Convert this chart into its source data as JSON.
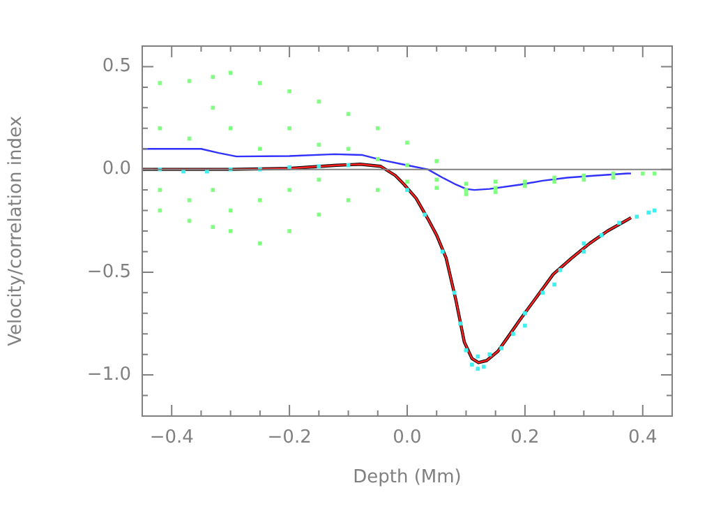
{
  "chart_data": {
    "type": "scatter",
    "xlabel": "Depth (Mm)",
    "ylabel": "Velocity/correlation index",
    "xlim": [
      -0.45,
      0.45
    ],
    "ylim": [
      -1.2,
      0.6
    ],
    "xticks": [
      {
        "value": -0.45,
        "label": null
      },
      {
        "value": -0.4,
        "label": "−0.4"
      },
      {
        "value": -0.35,
        "label": null
      },
      {
        "value": -0.3,
        "label": null
      },
      {
        "value": -0.25,
        "label": null
      },
      {
        "value": -0.2,
        "label": "−0.2"
      },
      {
        "value": -0.15,
        "label": null
      },
      {
        "value": -0.1,
        "label": null
      },
      {
        "value": -0.05,
        "label": null
      },
      {
        "value": 0,
        "label": "0.0"
      },
      {
        "value": 0.05,
        "label": null
      },
      {
        "value": 0.1,
        "label": null
      },
      {
        "value": 0.15,
        "label": null
      },
      {
        "value": 0.2,
        "label": "0.2"
      },
      {
        "value": 0.25,
        "label": null
      },
      {
        "value": 0.3,
        "label": null
      },
      {
        "value": 0.35,
        "label": null
      },
      {
        "value": 0.4,
        "label": "0.4"
      },
      {
        "value": 0.45,
        "label": null
      }
    ],
    "yticks": [
      {
        "value": -1.2,
        "label": null
      },
      {
        "value": -1.1,
        "label": null
      },
      {
        "value": -1.0,
        "label": "−1.0"
      },
      {
        "value": -0.9,
        "label": null
      },
      {
        "value": -0.8,
        "label": null
      },
      {
        "value": -0.7,
        "label": null
      },
      {
        "value": -0.6,
        "label": null
      },
      {
        "value": -0.5,
        "label": "−0.5"
      },
      {
        "value": -0.4,
        "label": null
      },
      {
        "value": -0.3,
        "label": null
      },
      {
        "value": -0.2,
        "label": null
      },
      {
        "value": -0.1,
        "label": null
      },
      {
        "value": 0,
        "label": "0.0"
      },
      {
        "value": 0.1,
        "label": null
      },
      {
        "value": 0.2,
        "label": null
      },
      {
        "value": 0.3,
        "label": null
      },
      {
        "value": 0.4,
        "label": null
      },
      {
        "value": 0.5,
        "label": "0.5"
      },
      {
        "value": 0.6,
        "label": null
      }
    ],
    "grid": false,
    "legend": false,
    "ref_lines": [
      {
        "axis": "y",
        "value": 0,
        "color": "#808080"
      }
    ],
    "series": [
      {
        "marker": "square",
        "color": "#80ff80",
        "x": [
          -0.42,
          -0.42,
          -0.42,
          -0.42,
          -0.37,
          -0.37,
          -0.37,
          -0.37,
          -0.33,
          -0.33,
          -0.33,
          -0.33,
          -0.3,
          -0.3,
          -0.3,
          -0.3,
          -0.25,
          -0.25,
          -0.25,
          -0.25,
          -0.2,
          -0.2,
          -0.2,
          -0.2,
          -0.15,
          -0.15,
          -0.15,
          -0.15,
          -0.1,
          -0.1,
          -0.1,
          -0.05,
          -0.05,
          -0.05,
          0,
          0,
          0,
          0.05,
          0.05,
          0.05,
          0.1,
          0.1,
          0.1,
          0.15,
          0.15,
          0.15,
          0.2,
          0.2,
          0.25,
          0.25,
          0.3,
          0.3,
          0.35,
          0.35,
          0.4,
          0.42
        ],
        "values": [
          0.42,
          0.2,
          -0.1,
          -0.2,
          0.43,
          0.15,
          -0.15,
          -0.25,
          0.45,
          0.3,
          -0.1,
          -0.28,
          0.47,
          0.2,
          -0.2,
          -0.3,
          0.42,
          0.1,
          -0.15,
          -0.36,
          0.38,
          0.2,
          -0.1,
          -0.3,
          0.33,
          0.12,
          -0.05,
          -0.22,
          0.27,
          0.1,
          -0.15,
          0.2,
          0.05,
          -0.1,
          0.13,
          0.02,
          -0.06,
          0.04,
          -0.05,
          -0.09,
          -0.07,
          -0.1,
          -0.12,
          -0.06,
          -0.09,
          -0.11,
          -0.06,
          -0.08,
          -0.04,
          -0.06,
          -0.03,
          -0.05,
          -0.02,
          -0.04,
          -0.02,
          -0.02
        ]
      },
      {
        "marker": "square",
        "color": "#40f0f0",
        "x": [
          -0.42,
          -0.38,
          -0.34,
          -0.3,
          -0.25,
          -0.2,
          -0.15,
          -0.1,
          0,
          0.03,
          0.06,
          0.08,
          0.09,
          0.1,
          0.11,
          0.12,
          0.13,
          0.12,
          0.14,
          0.16,
          0.18,
          0.2,
          0.2,
          0.23,
          0.25,
          0.26,
          0.3,
          0.3,
          0.33,
          0.36,
          0.39,
          0.41,
          0.42
        ],
        "values": [
          0,
          -0.01,
          -0.01,
          0,
          0,
          0.01,
          0.015,
          0.02,
          -0.1,
          -0.22,
          -0.4,
          -0.6,
          -0.75,
          -0.88,
          -0.95,
          -0.97,
          -0.96,
          -0.91,
          -0.9,
          -0.87,
          -0.8,
          -0.7,
          -0.76,
          -0.6,
          -0.56,
          -0.49,
          -0.4,
          -0.36,
          -0.32,
          -0.26,
          -0.23,
          -0.21,
          -0.2
        ]
      },
      {
        "type": "line",
        "color": "#000000",
        "x": [
          -0.45,
          -0.4,
          -0.3,
          -0.2,
          -0.12,
          -0.08,
          -0.045,
          -0.02,
          -0.005,
          0.015,
          0.035,
          0.05,
          0.066,
          0.083,
          0.097,
          0.11,
          0.121,
          0.135,
          0.154,
          0.17,
          0.192,
          0.22,
          0.248,
          0.28,
          0.31,
          0.34,
          0.374,
          0.38
        ],
        "values": [
          0,
          0,
          0,
          0.005,
          0.02,
          0.025,
          0.015,
          -0.03,
          -0.074,
          -0.14,
          -0.24,
          -0.32,
          -0.43,
          -0.64,
          -0.84,
          -0.92,
          -0.94,
          -0.93,
          -0.885,
          -0.82,
          -0.73,
          -0.62,
          -0.51,
          -0.43,
          -0.36,
          -0.3,
          -0.245,
          -0.235
        ]
      },
      {
        "type": "line",
        "color": "#ff2020",
        "x": [
          -0.45,
          -0.4,
          -0.3,
          -0.2,
          -0.12,
          -0.08,
          -0.045,
          -0.02,
          -0.005,
          0.015,
          0.035,
          0.05,
          0.066,
          0.083,
          0.097,
          0.11,
          0.121,
          0.135,
          0.154,
          0.17,
          0.192,
          0.22,
          0.248,
          0.28,
          0.31,
          0.34,
          0.374,
          0.38
        ],
        "values": [
          0,
          0,
          0,
          0.005,
          0.02,
          0.025,
          0.015,
          -0.03,
          -0.074,
          -0.14,
          -0.24,
          -0.32,
          -0.43,
          -0.64,
          -0.84,
          -0.92,
          -0.94,
          -0.93,
          -0.885,
          -0.82,
          -0.73,
          -0.62,
          -0.51,
          -0.43,
          -0.36,
          -0.3,
          -0.245,
          -0.235
        ]
      },
      {
        "type": "line",
        "color": "#3030ff",
        "x": [
          -0.45,
          -0.38,
          -0.35,
          -0.32,
          -0.29,
          -0.2,
          -0.123,
          -0.076,
          -0.045,
          0,
          0.035,
          0.06,
          0.083,
          0.1,
          0.114,
          0.14,
          0.192,
          0.23,
          0.272,
          0.32,
          0.374,
          0.38
        ],
        "values": [
          0.1,
          0.1,
          0.1,
          0.08,
          0.063,
          0.065,
          0.074,
          0.07,
          0.047,
          0.02,
          0,
          -0.04,
          -0.074,
          -0.095,
          -0.1,
          -0.095,
          -0.074,
          -0.055,
          -0.04,
          -0.03,
          -0.02,
          -0.02
        ]
      }
    ]
  }
}
